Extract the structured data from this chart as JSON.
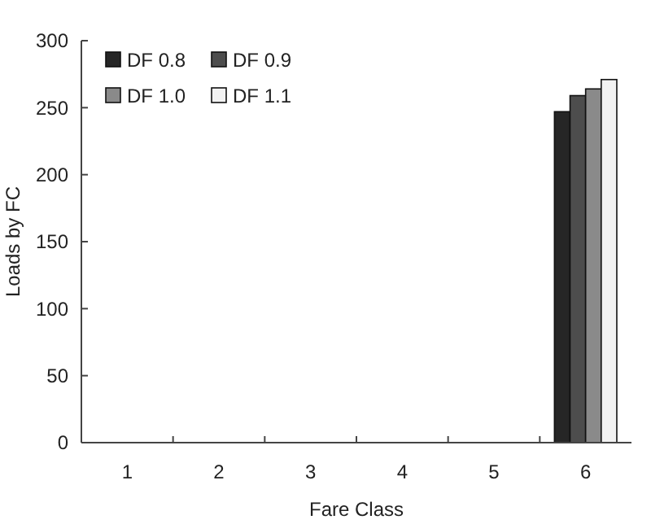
{
  "chart_data": {
    "type": "bar",
    "xlabel": "Fare Class",
    "ylabel": "Loads by FC",
    "categories": [
      "1",
      "2",
      "3",
      "4",
      "5",
      "6"
    ],
    "series": [
      {
        "name": "DF 0.8",
        "color": "#262626",
        "values": [
          0,
          0,
          0,
          0,
          0,
          247
        ]
      },
      {
        "name": "DF 0.9",
        "color": "#4d4d4d",
        "values": [
          0,
          0,
          0,
          0,
          0,
          259
        ]
      },
      {
        "name": "DF 1.0",
        "color": "#8a8a8a",
        "values": [
          0,
          0,
          0,
          0,
          0,
          264
        ]
      },
      {
        "name": "DF 1.1",
        "color": "#f2f2f2",
        "values": [
          0,
          0,
          0,
          0,
          0,
          271
        ]
      }
    ],
    "ylim": [
      0,
      300
    ],
    "yticks": [
      0,
      50,
      100,
      150,
      200,
      250,
      300
    ],
    "grid": false,
    "legend": "top left"
  }
}
